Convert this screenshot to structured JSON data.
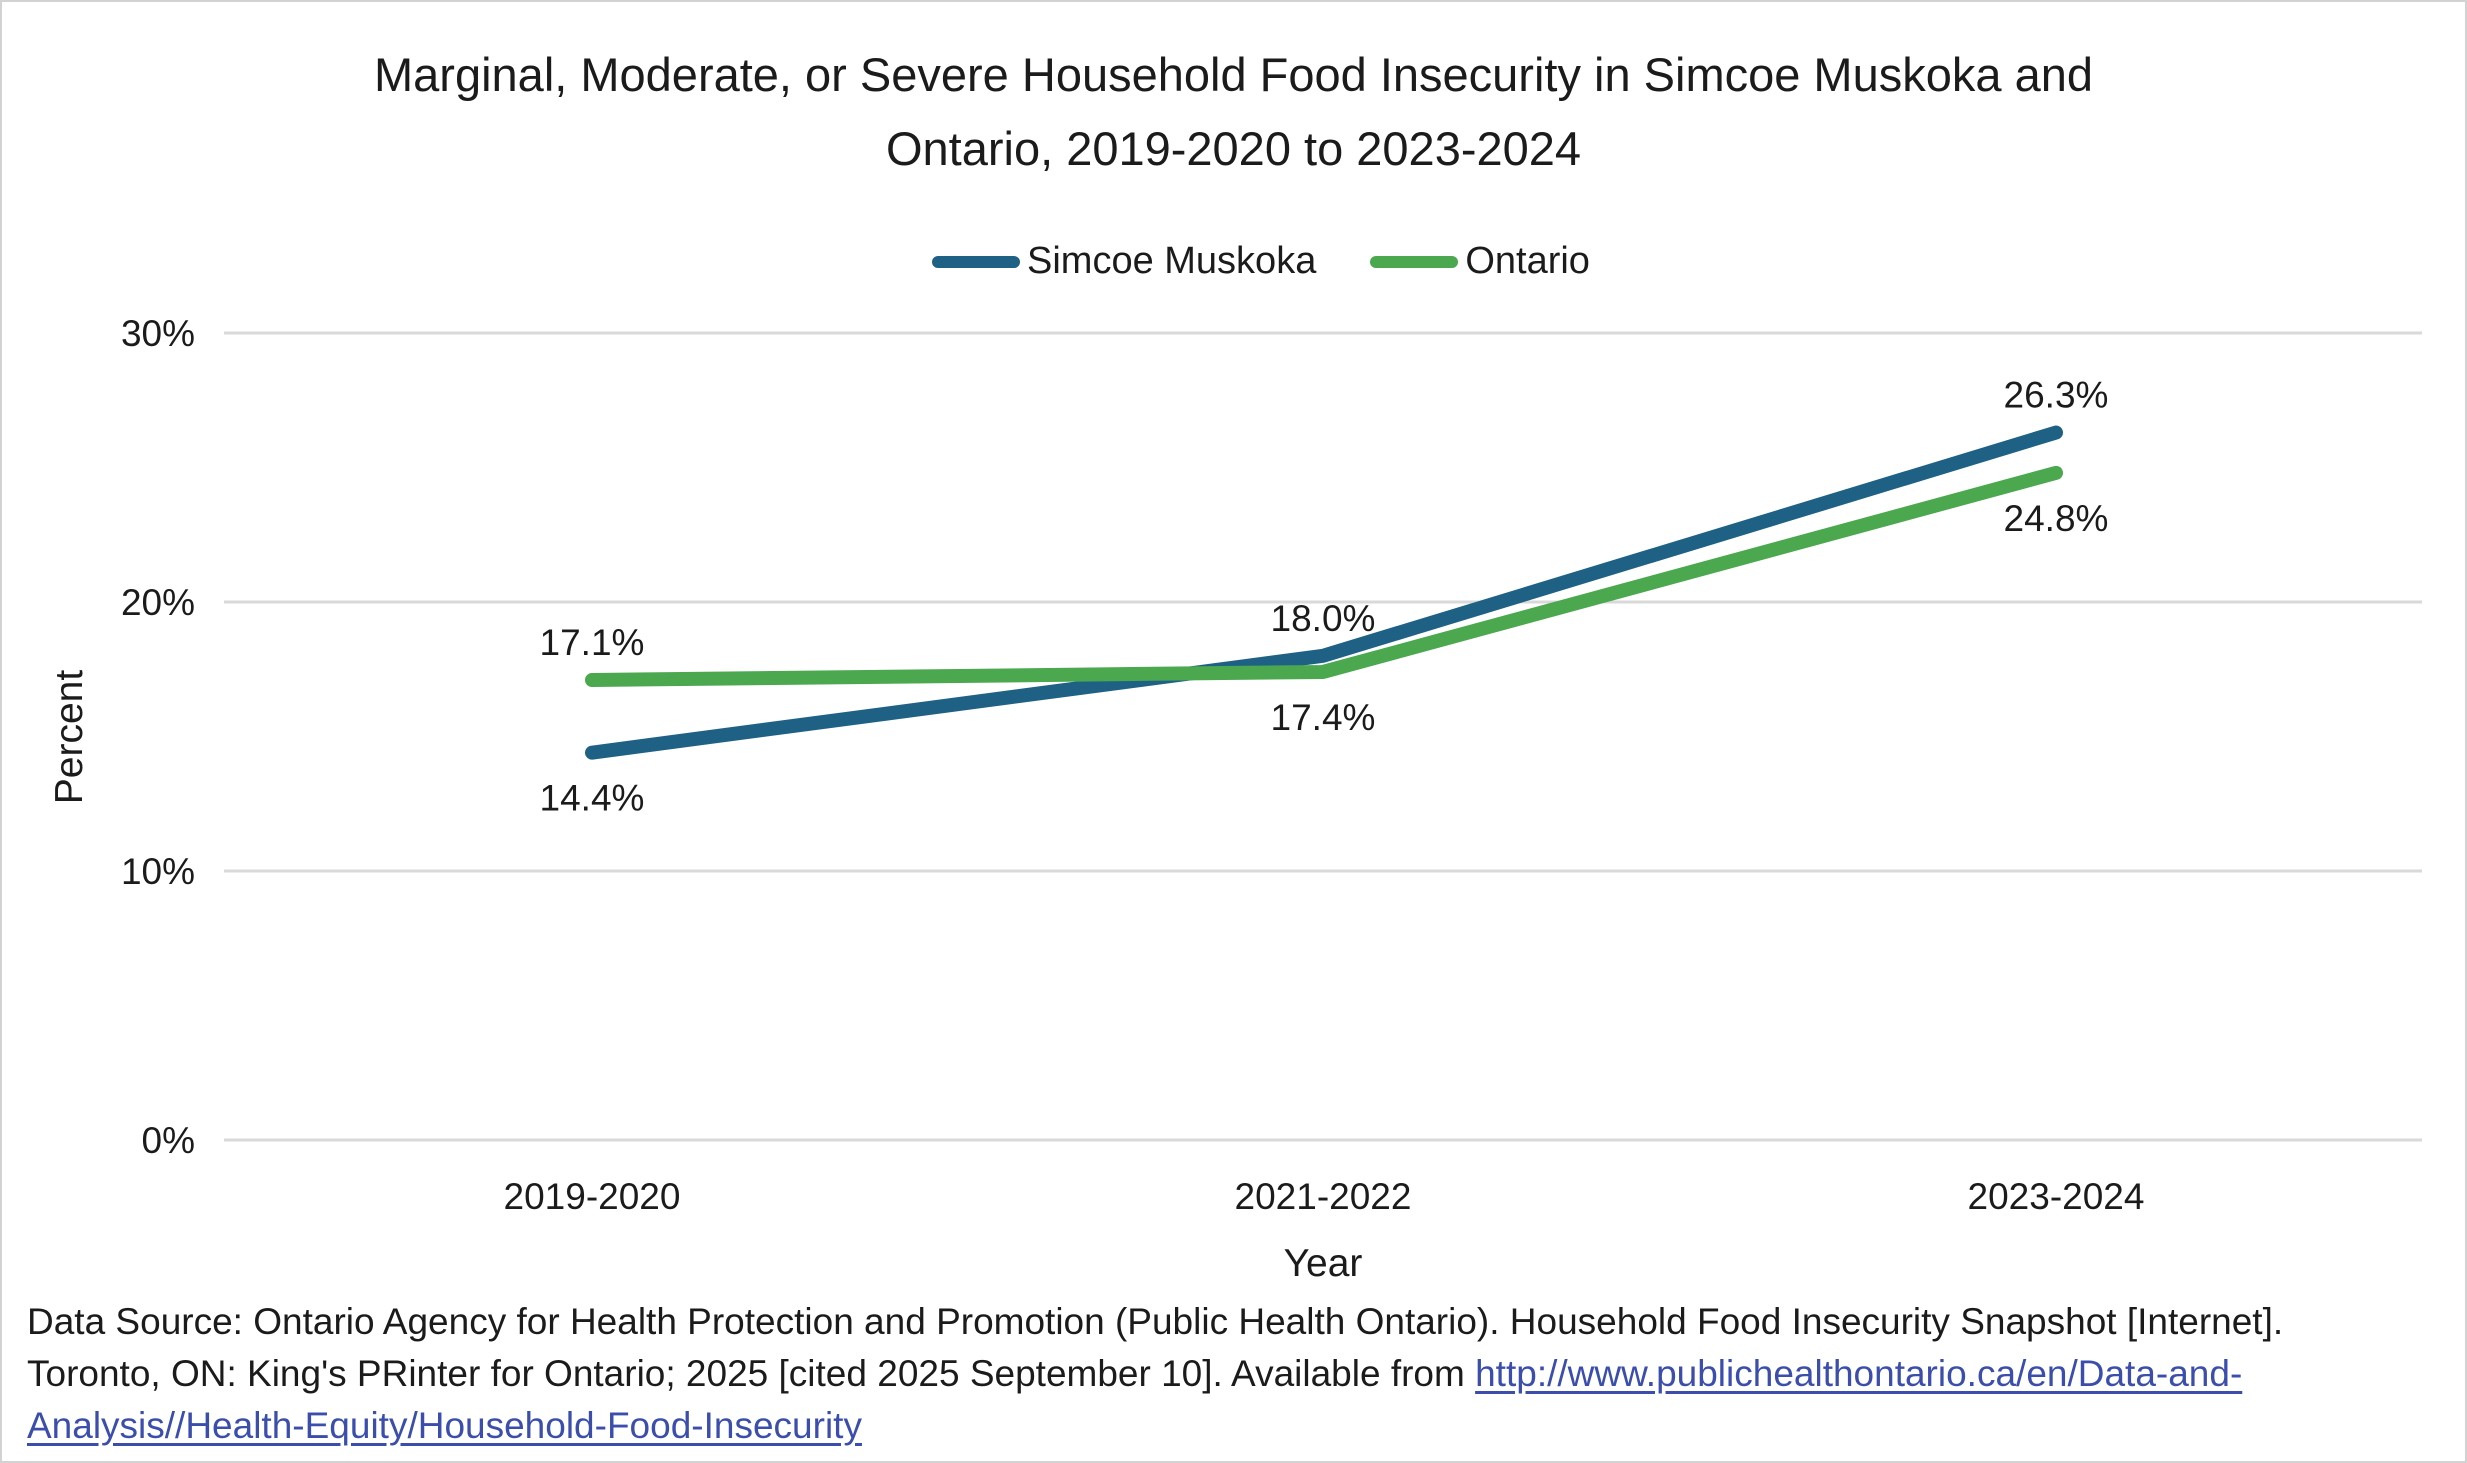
{
  "title": {
    "line1": "Marginal, Moderate, or Severe Household Food Insecurity in Simcoe Muskoka and",
    "line2": "Ontario, 2019-2020 to 2023-2024"
  },
  "legend": {
    "items": [
      {
        "label": "Simcoe Muskoka",
        "color": "#1F6185"
      },
      {
        "label": "Ontario",
        "color": "#4BA84F"
      }
    ]
  },
  "chart_data": {
    "type": "line",
    "title": "Marginal, Moderate, or Severe Household Food Insecurity in Simcoe Muskoka and Ontario, 2019-2020 to 2023-2024",
    "categories": [
      "2019-2020",
      "2021-2022",
      "2023-2024"
    ],
    "series": [
      {
        "name": "Simcoe Muskoka",
        "color": "#1F6185",
        "values": [
          14.4,
          18.0,
          26.3
        ],
        "labels": [
          "14.4%",
          "18.0%",
          "26.3%"
        ],
        "label_positions": [
          "below",
          "above",
          "above"
        ]
      },
      {
        "name": "Ontario",
        "color": "#4BA84F",
        "values": [
          17.1,
          17.4,
          24.8
        ],
        "labels": [
          "17.1%",
          "17.4%",
          "24.8%"
        ],
        "label_positions": [
          "above",
          "below",
          "below"
        ]
      }
    ],
    "xlabel": "Year",
    "ylabel": "Percent",
    "ylim": [
      0,
      30
    ],
    "ytick_values": [
      0,
      10,
      20,
      30
    ],
    "ytick_labels": [
      "0%",
      "10%",
      "20%",
      "30%"
    ],
    "grid": true,
    "gridline_color": "#D9D9D9",
    "legend_position": "top"
  },
  "footer": {
    "line1": "Data Source: Ontario Agency for Health Protection and Promotion (Public Health Ontario). Household Food Insecurity Snapshot [Internet].",
    "line2_text": "Toronto, ON: King's PRinter for Ontario; 2025 [cited 2025 September 10]. Available from ",
    "line2_link": "http://www.publichealthontario.ca/en/Data-and-",
    "line3_link": "Analysis//Health-Equity/Household-Food-Insecurity",
    "link_color": "#3B4EAC"
  }
}
